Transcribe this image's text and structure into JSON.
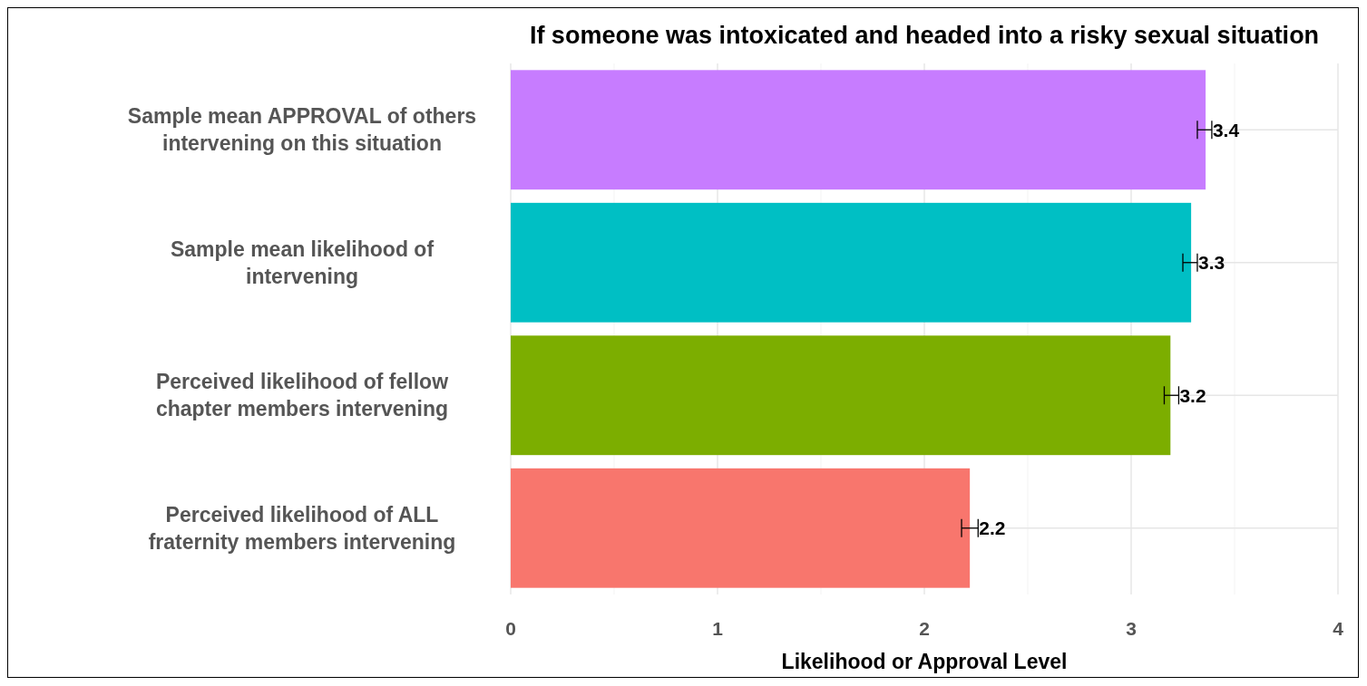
{
  "chart_data": {
    "type": "bar",
    "orientation": "horizontal",
    "title": "If someone was intoxicated and headed into a risky sexual situation",
    "xlabel": "Likelihood or Approval Level",
    "categories": [
      "Sample mean APPROVAL of others\nintervening on this situation",
      "Sample mean likelihood of\nintervening",
      "Perceived likelihood of fellow\nchapter members intervening",
      "Perceived likelihood of ALL\nfraternity members intervening"
    ],
    "values": [
      3.36,
      3.29,
      3.19,
      2.22
    ],
    "colors": [
      "#c77cff",
      "#00bfc4",
      "#7cae00",
      "#f8766d"
    ],
    "errors": [
      [
        3.32,
        3.39
      ],
      [
        3.25,
        3.32
      ],
      [
        3.16,
        3.23
      ],
      [
        2.18,
        2.26
      ]
    ],
    "value_labels": [
      "3.4",
      "3.3",
      "3.2",
      "2.2"
    ],
    "xlim": [
      0,
      4
    ],
    "xticks": [
      0,
      {
        "value": 0.5,
        "label": null
      },
      1,
      {
        "value": 1.5,
        "label": null
      },
      2,
      {
        "value": 2.5,
        "label": null
      },
      3,
      {
        "value": 3.5,
        "label": null
      },
      4
    ],
    "grid": true
  }
}
